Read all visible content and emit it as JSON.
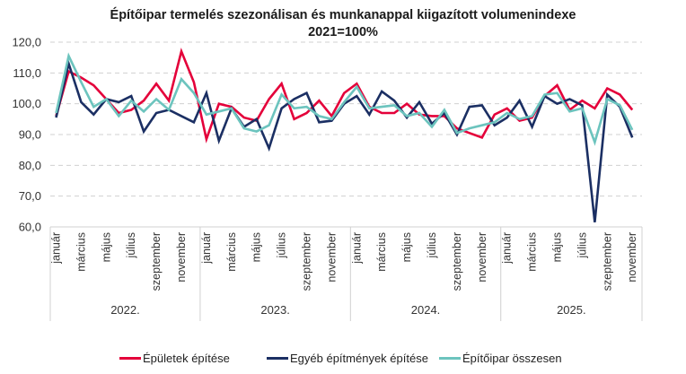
{
  "chart_data": {
    "type": "line",
    "title": "Építőipar termelés szezonálisan és munkanappal kiigazított volumenindexe",
    "subtitle": "2021=100%",
    "xlabel": "",
    "ylabel": "",
    "ylim": [
      60,
      120
    ],
    "yticks": [
      "60,0",
      "70,0",
      "80,0",
      "90,0",
      "100,0",
      "110,0",
      "120,0"
    ],
    "ytick_values": [
      60,
      70,
      80,
      90,
      100,
      110,
      120
    ],
    "grid": true,
    "legend_position": "bottom",
    "years": [
      "2022.",
      "2023.",
      "2024.",
      "2025."
    ],
    "month_labels": [
      "január",
      "",
      "március",
      "",
      "május",
      "",
      "július",
      "",
      "szeptember",
      "",
      "november",
      ""
    ],
    "x": [
      "2022-01",
      "2022-02",
      "2022-03",
      "2022-04",
      "2022-05",
      "2022-06",
      "2022-07",
      "2022-08",
      "2022-09",
      "2022-10",
      "2022-11",
      "2022-12",
      "2023-01",
      "2023-02",
      "2023-03",
      "2023-04",
      "2023-05",
      "2023-06",
      "2023-07",
      "2023-08",
      "2023-09",
      "2023-10",
      "2023-11",
      "2023-12",
      "2024-01",
      "2024-02",
      "2024-03",
      "2024-04",
      "2024-05",
      "2024-06",
      "2024-07",
      "2024-08",
      "2024-09",
      "2024-10",
      "2024-11",
      "2024-12",
      "2025-01",
      "2025-02",
      "2025-03",
      "2025-04",
      "2025-05",
      "2025-06",
      "2025-07",
      "2025-08",
      "2025-09",
      "2025-10",
      "2025-11"
    ],
    "series": [
      {
        "name": "Épületek építése",
        "color": "#E4003A",
        "values": [
          96,
          110.5,
          108.5,
          106,
          101.5,
          97,
          98,
          101,
          106.5,
          101,
          117,
          107,
          88.5,
          100,
          99,
          95.5,
          94.5,
          101.5,
          106.5,
          95,
          97,
          101,
          96,
          103.5,
          106.5,
          99,
          97,
          97,
          100,
          96.5,
          96,
          96,
          92,
          90.5,
          89,
          96.5,
          98.5,
          94.5,
          95.5,
          102.5,
          106,
          98,
          101,
          98.5,
          105,
          103,
          98
        ]
      },
      {
        "name": "Egyéb építmények építése",
        "color": "#1B2F63",
        "values": [
          95.5,
          113,
          100.5,
          96.5,
          101.5,
          100.5,
          102.5,
          91,
          97,
          98,
          96,
          94,
          103.5,
          88,
          98.5,
          92.5,
          95,
          85.5,
          98.5,
          101.5,
          103.5,
          94,
          94.5,
          100,
          102.5,
          96.5,
          104,
          101,
          95.5,
          100.5,
          93.5,
          97,
          90,
          99,
          99.5,
          93,
          95.5,
          101,
          92.5,
          102.5,
          100,
          101.5,
          99.5,
          61.5,
          103,
          99,
          89
        ]
      },
      {
        "name": "Építőipar összesen",
        "color": "#6CC4BE",
        "values": [
          97,
          115.5,
          107,
          99,
          101.5,
          96,
          101,
          97.5,
          101.5,
          98,
          108,
          103.5,
          96.5,
          97.5,
          98.5,
          92,
          91,
          93,
          103,
          98.5,
          99,
          96,
          95,
          100.5,
          105.5,
          98.5,
          99,
          99.5,
          96,
          97,
          92.5,
          98,
          90.5,
          92,
          93,
          94,
          97,
          95,
          96,
          103,
          103.5,
          97.5,
          98.5,
          87.5,
          101.5,
          99.5,
          91.5
        ]
      }
    ]
  }
}
